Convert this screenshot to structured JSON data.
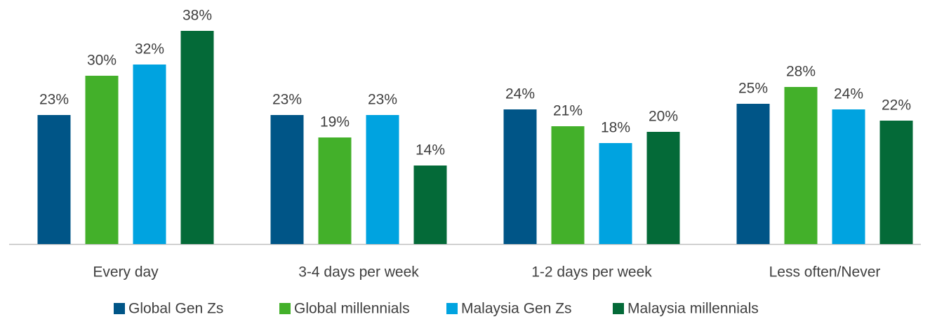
{
  "chart_data": {
    "type": "bar",
    "categories": [
      "Every day",
      "3-4 days per week",
      "1-2 days per week",
      "Less often/Never"
    ],
    "series": [
      {
        "name": "Global Gen Zs",
        "color": "#005587",
        "values": [
          23,
          23,
          24,
          25
        ],
        "value_labels": [
          "23%",
          "23%",
          "24%",
          "25%"
        ]
      },
      {
        "name": "Global millennials",
        "color": "#43b02a",
        "values": [
          30,
          19,
          21,
          28
        ],
        "value_labels": [
          "30%",
          "19%",
          "21%",
          "28%"
        ]
      },
      {
        "name": "Malaysia Gen Zs",
        "color": "#00a3e0",
        "values": [
          32,
          23,
          18,
          24
        ],
        "value_labels": [
          "32%",
          "23%",
          "18%",
          "24%"
        ]
      },
      {
        "name": "Malaysia millennials",
        "color": "#046a38",
        "values": [
          38,
          14,
          20,
          22
        ],
        "value_labels": [
          "38%",
          "14%",
          "20%",
          "22%"
        ]
      }
    ],
    "legend": "bottom"
  }
}
